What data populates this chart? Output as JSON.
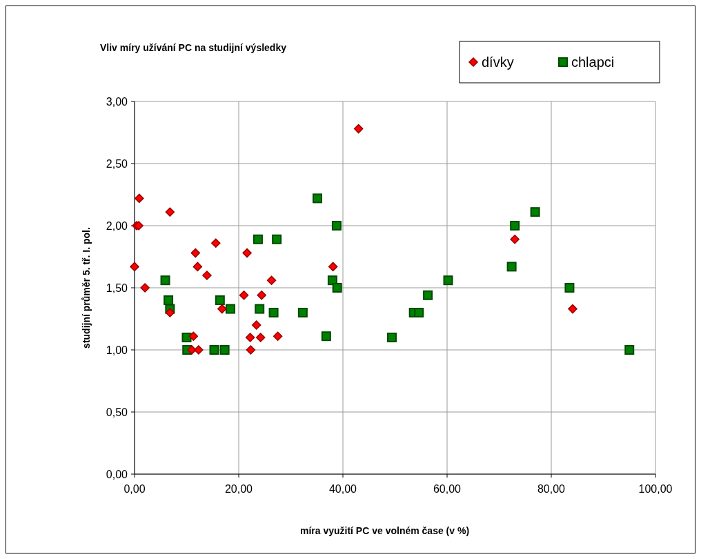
{
  "chart_data": {
    "type": "scatter",
    "title": "Vliv míry užívání PC na studijní výsledky",
    "xlabel": "míra využití PC ve volném čase (v %)",
    "ylabel": "studijní průměr 5. tř. I. pol.",
    "xlim": [
      0,
      100
    ],
    "xticks": [
      {
        "value": 0,
        "label": "0,00"
      },
      {
        "value": 20,
        "label": "20,00"
      },
      {
        "value": 40,
        "label": "40,00"
      },
      {
        "value": 60,
        "label": "60,00"
      },
      {
        "value": 80,
        "label": "80,00"
      },
      {
        "value": 100,
        "label": "100,00"
      }
    ],
    "ylim": [
      0,
      3
    ],
    "yticks": [
      {
        "value": 0,
        "label": "0,00"
      },
      {
        "value": 0.5,
        "label": "0,50"
      },
      {
        "value": 1,
        "label": "1,00"
      },
      {
        "value": 1.5,
        "label": "1,50"
      },
      {
        "value": 2,
        "label": "2,00"
      },
      {
        "value": 2.5,
        "label": "2,50"
      },
      {
        "value": 3,
        "label": "3,00"
      }
    ],
    "grid": true,
    "legend": "top right",
    "series": [
      {
        "name": "dívky",
        "color": "#ff0000",
        "marker": "diamond",
        "x": [
          0,
          0.4,
          0.8,
          0.9,
          2.0,
          6.8,
          6.8,
          11.7,
          12.1,
          11.3,
          11.0,
          12.3,
          13.9,
          15.6,
          16.8,
          21.0,
          21.6,
          22.2,
          22.3,
          23.4,
          24.4,
          24.2,
          26.3,
          27.5,
          38.1,
          43.0,
          73.0,
          84.1
        ],
        "values": [
          1.67,
          2.0,
          2.0,
          2.22,
          1.5,
          2.11,
          1.3,
          1.78,
          1.67,
          1.11,
          1.0,
          1.0,
          1.6,
          1.86,
          1.33,
          1.44,
          1.78,
          1.1,
          1.0,
          1.2,
          1.44,
          1.1,
          1.56,
          1.11,
          1.67,
          2.78,
          1.89,
          1.33
        ]
      },
      {
        "name": "chlapci",
        "color": "#008000",
        "marker": "square",
        "x": [
          5.9,
          6.5,
          6.8,
          10.0,
          10.1,
          15.3,
          17.3,
          16.4,
          18.4,
          23.7,
          24.0,
          26.7,
          27.3,
          32.3,
          35.1,
          38.8,
          38.0,
          38.9,
          36.8,
          49.4,
          53.6,
          54.6,
          56.3,
          60.2,
          76.9,
          73.0,
          72.4,
          83.5,
          95.0
        ],
        "values": [
          1.56,
          1.4,
          1.33,
          1.1,
          1.0,
          1.0,
          1.0,
          1.4,
          1.33,
          1.89,
          1.33,
          1.3,
          1.89,
          1.3,
          2.22,
          2.0,
          1.56,
          1.5,
          1.11,
          1.1,
          1.3,
          1.3,
          1.44,
          1.56,
          2.11,
          2.0,
          1.67,
          1.5,
          1.0
        ]
      }
    ]
  }
}
